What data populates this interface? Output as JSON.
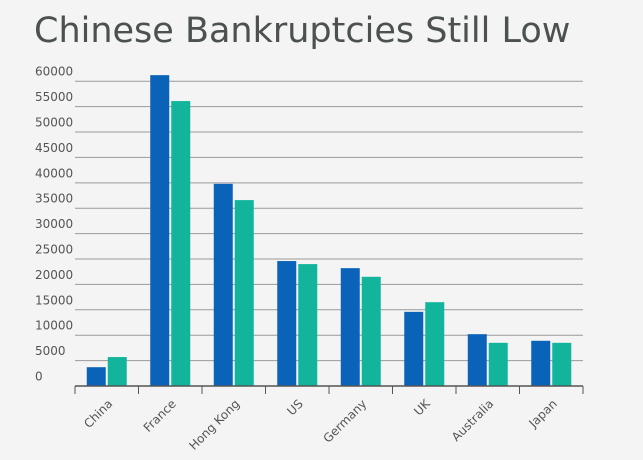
{
  "chart_data": {
    "type": "bar",
    "title": "Chinese Bankruptcies Still Low",
    "categories": [
      "China",
      "France",
      "Hong Kong",
      "US",
      "Germany",
      "UK",
      "Australia",
      "Japan"
    ],
    "series": [
      {
        "color": "#0a63b8",
        "values": [
          3700,
          61200,
          39800,
          24600,
          23200,
          14600,
          10200,
          8900
        ]
      },
      {
        "color": "#12b59c",
        "values": [
          5700,
          56100,
          36600,
          24000,
          21500,
          16500,
          8500,
          8500
        ]
      }
    ],
    "ylim": [
      0,
      63000
    ],
    "yticks": [
      0,
      5000,
      10000,
      15000,
      20000,
      25000,
      30000,
      35000,
      40000,
      45000,
      50000,
      55000,
      60000
    ],
    "grid": true
  }
}
